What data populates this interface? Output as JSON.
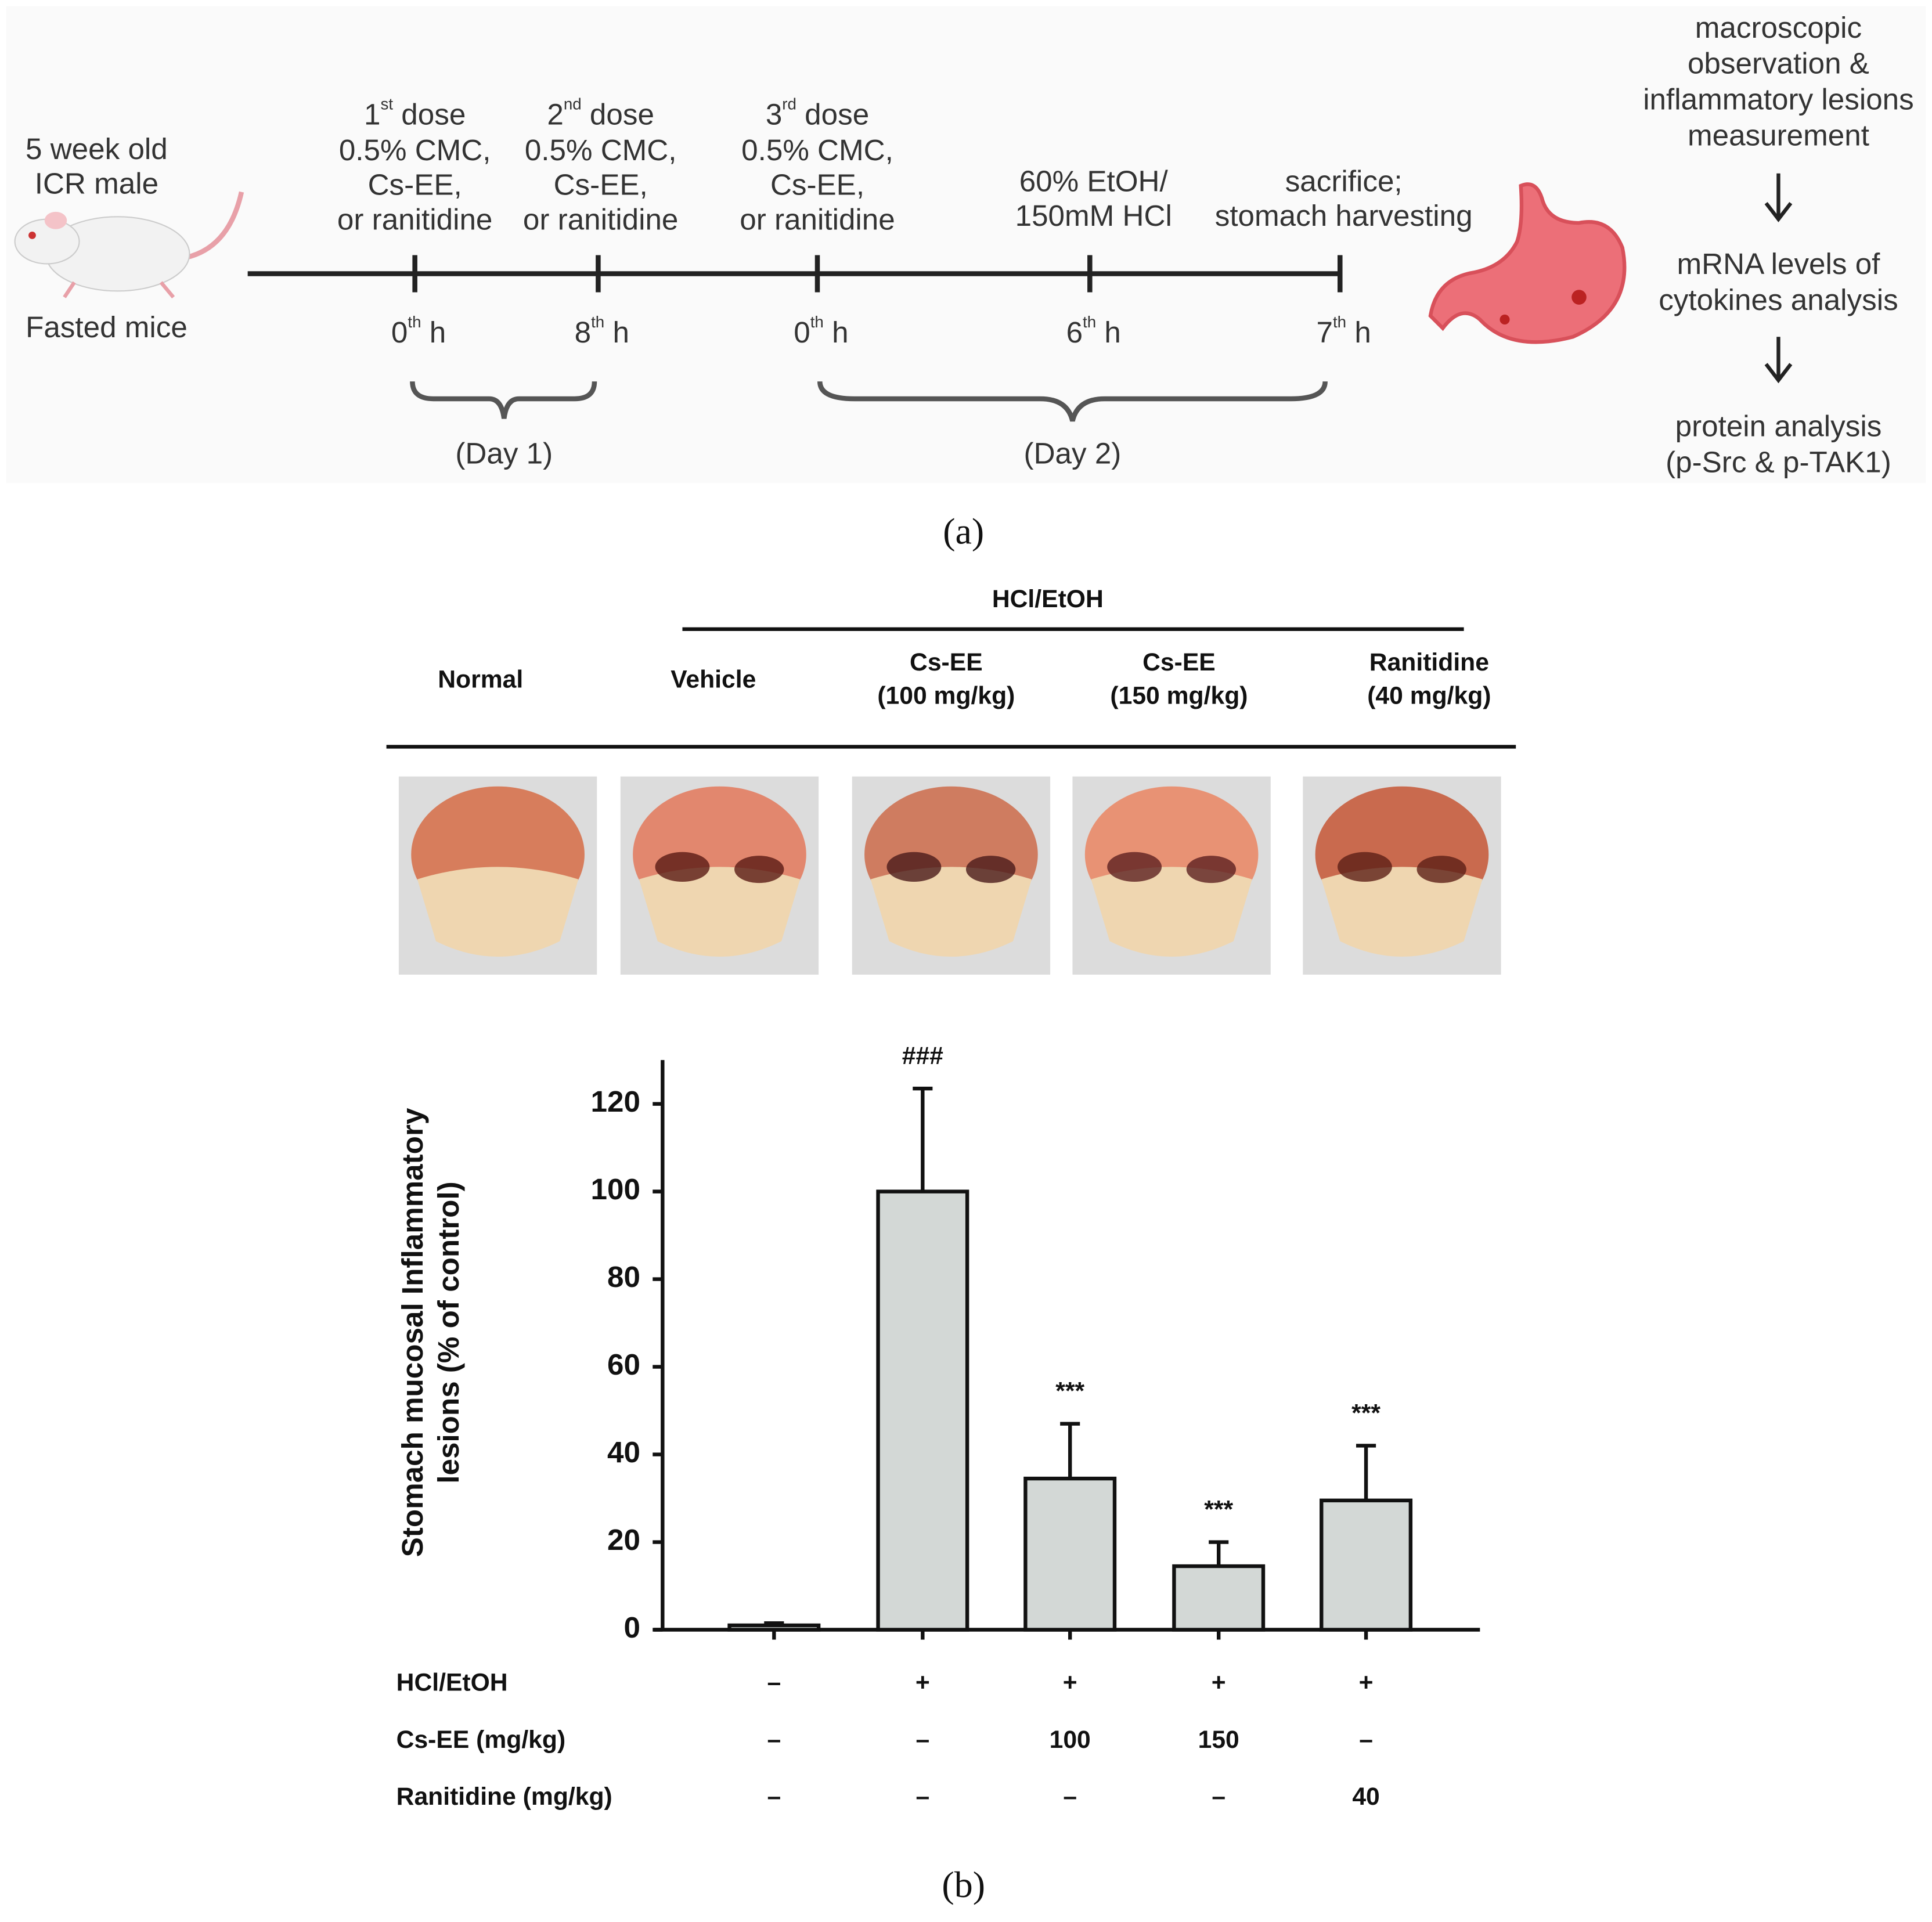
{
  "timeline": {
    "subject": {
      "top": [
        "5 week old",
        "ICR male"
      ],
      "bottom": "Fasted mice"
    },
    "doses": [
      {
        "n": "1",
        "sup": "st",
        "word": "dose",
        "lines": [
          "0.5% CMC,",
          "Cs-EE,",
          "or ranitidine"
        ]
      },
      {
        "n": "2",
        "sup": "nd",
        "word": "dose",
        "lines": [
          "0.5% CMC,",
          "Cs-EE,",
          "or ranitidine"
        ]
      },
      {
        "n": "3",
        "sup": "rd",
        "word": "dose",
        "lines": [
          "0.5% CMC,",
          "Cs-EE,",
          "or ranitidine"
        ]
      }
    ],
    "events": [
      {
        "lines": [
          "60% EtOH/",
          "150mM HCl"
        ]
      },
      {
        "lines": [
          "sacrifice;",
          "stomach harvesting"
        ]
      }
    ],
    "times": [
      {
        "n": "0",
        "sup": "th",
        "unit": "h"
      },
      {
        "n": "8",
        "sup": "th",
        "unit": "h"
      },
      {
        "n": "0",
        "sup": "th",
        "unit": "h"
      },
      {
        "n": "6",
        "sup": "th",
        "unit": "h"
      },
      {
        "n": "7",
        "sup": "th",
        "unit": "h"
      }
    ],
    "days": [
      "(Day 1)",
      "(Day 2)"
    ],
    "steps": [
      [
        "macroscopic",
        "observation &",
        "inflammatory lesions",
        "measurement"
      ],
      [
        "mRNA levels of",
        "cytokines analysis"
      ],
      [
        "protein analysis",
        "(p-Src & p-TAK1)"
      ]
    ]
  },
  "panel_labels": [
    "(a)",
    "(b)"
  ],
  "photo_header": {
    "group_label": "HCl/EtOH",
    "columns": [
      [
        "Normal"
      ],
      [
        "Vehicle"
      ],
      [
        "Cs-EE",
        "(100 mg/kg)"
      ],
      [
        "Cs-EE",
        "(150 mg/kg)"
      ],
      [
        "Ranitidine",
        "(40 mg/kg)"
      ]
    ]
  },
  "chart_data": {
    "type": "bar",
    "y_label": [
      "Stomach mucosal Inflammatory",
      "lesions (% of control)"
    ],
    "categories": [
      null,
      null,
      null,
      null,
      null
    ],
    "values": [
      1,
      100,
      34.5,
      14.5,
      29.5
    ],
    "errors": [
      0.5,
      23.5,
      12.5,
      5.5,
      12.5
    ],
    "annotations": [
      null,
      "###",
      "***",
      "***",
      "***"
    ],
    "color": "#d3d8d6",
    "ylim": [
      0,
      130
    ],
    "yticks": [
      0,
      20,
      40,
      60,
      80,
      100,
      120
    ]
  },
  "treatment_table": {
    "rows": [
      {
        "label": "HCl/EtOH",
        "cells": [
          "–",
          "+",
          "+",
          "+",
          "+"
        ]
      },
      {
        "label": "Cs-EE (mg/kg)",
        "cells": [
          "–",
          "–",
          "100",
          "150",
          "–"
        ]
      },
      {
        "label": "Ranitidine (mg/kg)",
        "cells": [
          "–",
          "–",
          "–",
          "–",
          "40"
        ]
      }
    ]
  }
}
